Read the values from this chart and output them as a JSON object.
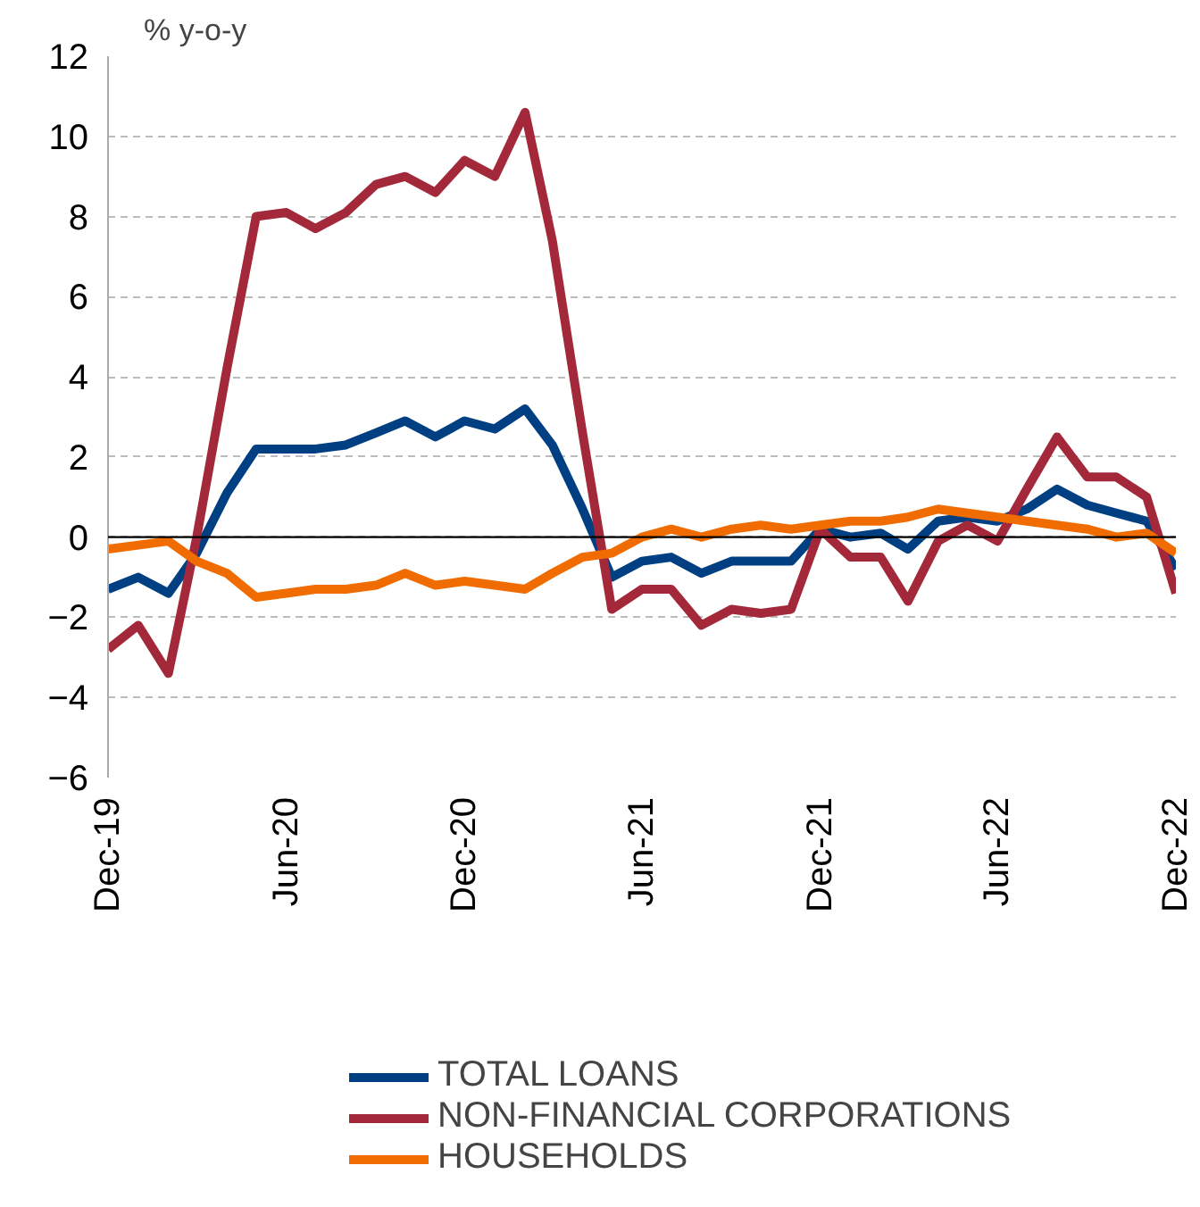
{
  "chart_data": {
    "type": "line",
    "ylabel": "% y-o-y",
    "x": [
      "2019-12",
      "2020-01",
      "2020-02",
      "2020-03",
      "2020-04",
      "2020-05",
      "2020-06",
      "2020-07",
      "2020-08",
      "2020-09",
      "2020-10",
      "2020-11",
      "2020-12",
      "2021-01",
      "2021-02",
      "2021-03",
      "2021-04",
      "2021-05",
      "2021-06",
      "2021-07",
      "2021-08",
      "2021-09",
      "2021-10",
      "2021-11",
      "2021-12",
      "2022-01",
      "2022-02",
      "2022-03",
      "2022-04",
      "2022-05",
      "2022-06",
      "2022-07",
      "2022-08",
      "2022-09",
      "2022-10",
      "2022-11",
      "2022-12"
    ],
    "series": [
      {
        "name": "TOTAL LOANS",
        "color": "#004082",
        "values": [
          -1.3,
          -1.0,
          -1.4,
          -0.4,
          1.1,
          2.2,
          2.2,
          2.2,
          2.3,
          2.6,
          2.9,
          2.5,
          2.9,
          2.7,
          3.2,
          2.3,
          0.7,
          -1.0,
          -0.6,
          -0.5,
          -0.9,
          -0.6,
          -0.6,
          -0.6,
          0.2,
          0.0,
          0.1,
          -0.3,
          0.4,
          0.5,
          0.4,
          0.7,
          1.2,
          0.8,
          0.6,
          0.4,
          -0.8
        ]
      },
      {
        "name": "NON-FINANCIAL CORPORATIONS",
        "color": "#a3283a",
        "values": [
          -2.8,
          -2.2,
          -3.4,
          0.0,
          4.2,
          8.0,
          8.1,
          7.7,
          8.1,
          8.8,
          9.0,
          8.6,
          9.4,
          9.0,
          10.6,
          7.4,
          2.6,
          -1.8,
          -1.3,
          -1.3,
          -2.2,
          -1.8,
          -1.9,
          -1.8,
          0.2,
          -0.5,
          -0.5,
          -1.6,
          -0.1,
          0.3,
          -0.1,
          1.2,
          2.5,
          1.5,
          1.5,
          1.0,
          -1.4
        ]
      },
      {
        "name": "HOUSEHOLDS",
        "color": "#f06c00",
        "values": [
          -0.3,
          -0.2,
          -0.1,
          -0.6,
          -0.9,
          -1.5,
          -1.4,
          -1.3,
          -1.3,
          -1.2,
          -0.9,
          -1.2,
          -1.1,
          -1.2,
          -1.3,
          -0.9,
          -0.5,
          -0.4,
          0.0,
          0.2,
          0.0,
          0.2,
          0.3,
          0.2,
          0.3,
          0.4,
          0.4,
          0.5,
          0.7,
          0.6,
          0.5,
          0.4,
          0.3,
          0.2,
          0.0,
          0.1,
          -0.4
        ]
      }
    ],
    "xlim": [
      "2019-12",
      "2022-12"
    ],
    "xticks": [
      {
        "value": "2019-12",
        "label": "Dec-19"
      },
      {
        "value": "2020-06",
        "label": "Jun-20"
      },
      {
        "value": "2020-12",
        "label": "Dec-20"
      },
      {
        "value": "2021-06",
        "label": "Jun-21"
      },
      {
        "value": "2021-12",
        "label": "Dec-21"
      },
      {
        "value": "2022-06",
        "label": "Jun-22"
      },
      {
        "value": "2022-12",
        "label": "Dec-22"
      }
    ],
    "ylim": [
      -6,
      12
    ],
    "yticks": [
      -6,
      -4,
      -2,
      0,
      2,
      4,
      6,
      8,
      10,
      12
    ],
    "ref_lines": [
      {
        "axis": "y",
        "value": 0,
        "color": "#000000"
      }
    ],
    "grid": "y",
    "legend": "bottom",
    "line_style": "solid"
  }
}
